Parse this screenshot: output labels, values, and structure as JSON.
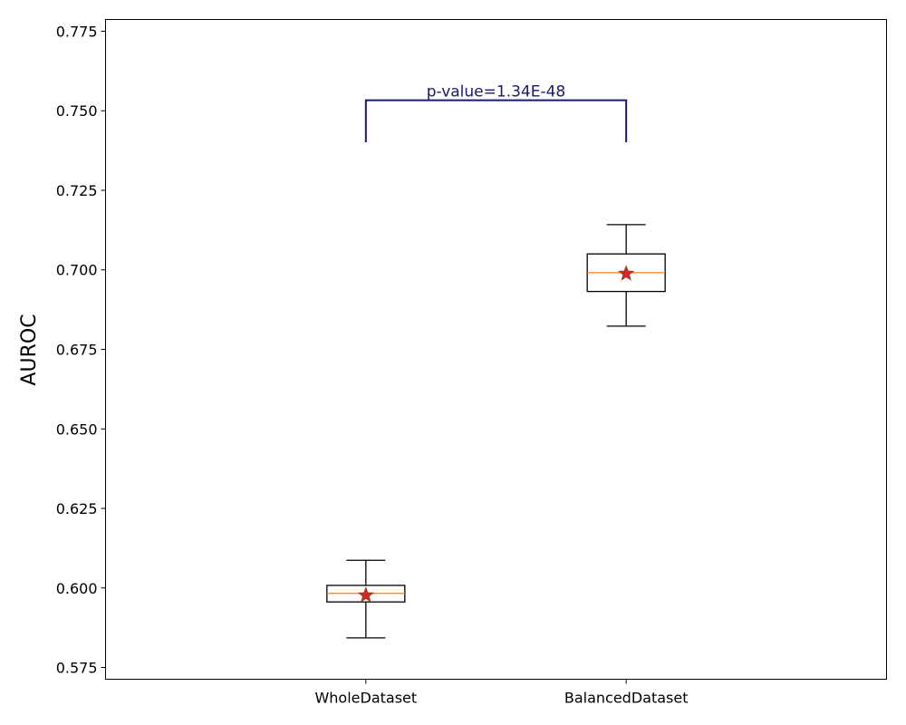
{
  "chart_data": {
    "type": "box",
    "title": "",
    "xlabel": "",
    "ylabel": "AUROC",
    "categories": [
      "WholeDataset",
      "BalancedDataset"
    ],
    "ylim": [
      0.5713,
      0.7787
    ],
    "yticks": [
      0.575,
      0.6,
      0.625,
      0.65,
      0.675,
      0.7,
      0.725,
      0.75,
      0.775
    ],
    "ytick_labels": [
      "0.575",
      "0.600",
      "0.625",
      "0.650",
      "0.675",
      "0.700",
      "0.725",
      "0.750",
      "0.775"
    ],
    "grid": false,
    "boxes": [
      {
        "category": "WholeDataset",
        "whisker_low": 0.5843,
        "q1": 0.5956,
        "median": 0.5983,
        "q3": 0.6008,
        "whisker_high": 0.6087,
        "mean": 0.5977
      },
      {
        "category": "BalancedDataset",
        "whisker_low": 0.6823,
        "q1": 0.6932,
        "median": 0.6991,
        "q3": 0.705,
        "whisker_high": 0.7142,
        "mean": 0.6988
      }
    ],
    "annotation": {
      "text": "p-value=1.34E-48",
      "bracket_top": 0.7533,
      "bracket_bottom": 0.7401
    },
    "colors": {
      "box": "#000000",
      "median": "#ff7f0e",
      "mean_marker_fill": "#d62728",
      "mean_marker_edge": "#8b4513",
      "annotation": "#191970"
    },
    "mean_marker": "star"
  }
}
